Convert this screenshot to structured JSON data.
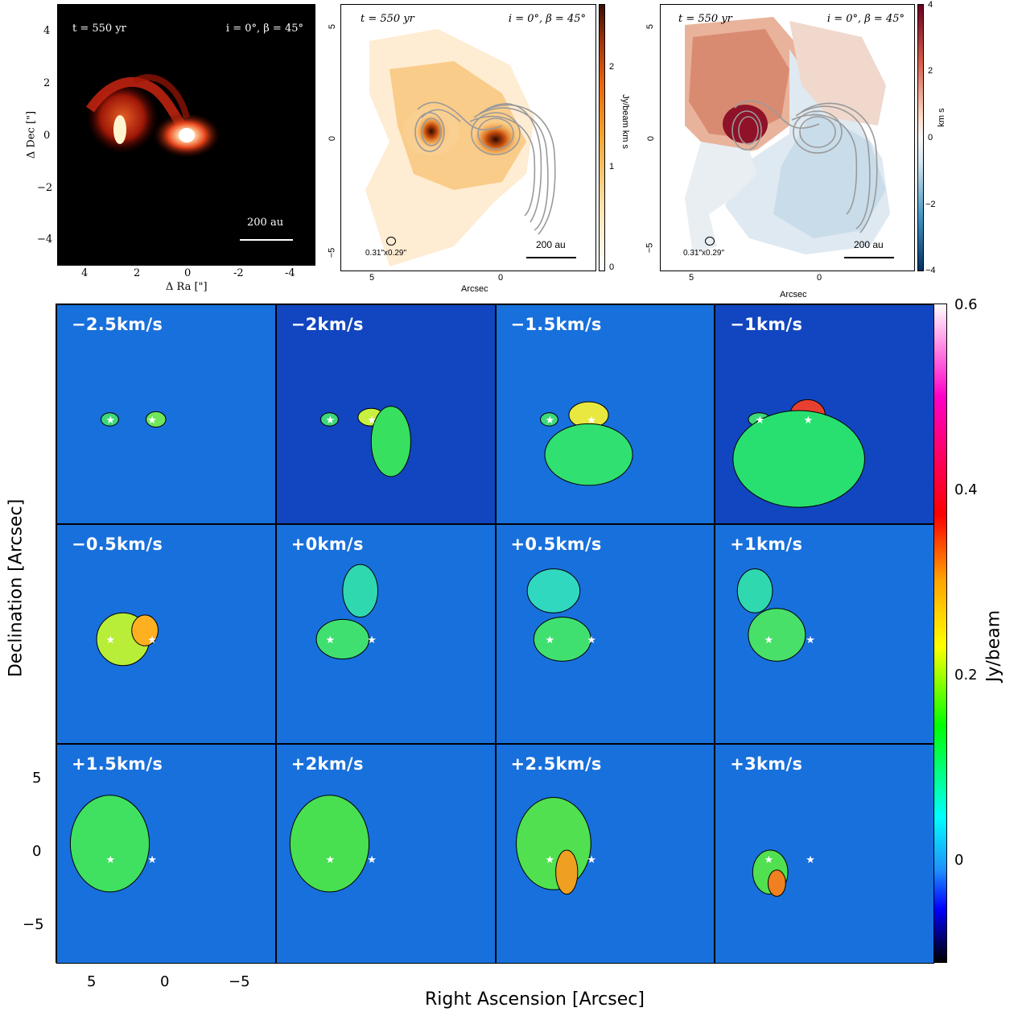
{
  "panel_sim": {
    "time_label": "t = 550 yr",
    "angle_label": "i = 0°, β = 45°",
    "scale_label": "200 au",
    "xlabel": "Δ Ra [\"]",
    "ylabel": "Δ Dec [\"]",
    "xticks": [
      "4",
      "2",
      "0",
      "-2",
      "-4"
    ],
    "yticks": [
      "4",
      "2",
      "0",
      "−2",
      "−4"
    ]
  },
  "panel_mom0": {
    "time_label": "t = 550 yr",
    "angle_label": "i = 0°, β = 45°",
    "beam_label": "0.31\"x0.29\"",
    "scale_label": "200 au",
    "xlabel": "Arcsec",
    "ylabel": "Arcsec",
    "xticks": [
      "5",
      "0"
    ],
    "yticks": [
      "5",
      "0",
      "−5"
    ],
    "cbar_label": "Jy/beam  km s",
    "cbar_ticks": [
      "2",
      "1",
      "0"
    ],
    "cbar_colors": [
      "#ffffff",
      "#fde0a8",
      "#f7a530",
      "#e8650c",
      "#a8360a",
      "#3a0e04"
    ]
  },
  "panel_mom1": {
    "time_label": "t = 550 yr",
    "angle_label": "i = 0°, β = 45°",
    "beam_label": "0.31\"x0.29\"",
    "scale_label": "200 au",
    "xlabel": "Arcsec",
    "ylabel": "Arcsec",
    "xticks": [
      "5",
      "0"
    ],
    "yticks": [
      "5",
      "0",
      "−5"
    ],
    "cbar_label": "km s",
    "cbar_ticks": [
      "4",
      "2",
      "0",
      "−2",
      "−4"
    ],
    "cbar_colors": [
      "#67001f",
      "#d6604d",
      "#fddbc7",
      "#f7f7f7",
      "#d1e5f0",
      "#4393c3",
      "#053061"
    ]
  },
  "channel_maps": {
    "labels": [
      "−2.5km/s",
      "−2km/s",
      "−1.5km/s",
      "−1km/s",
      "−0.5km/s",
      "+0km/s",
      "+0.5km/s",
      "+1km/s",
      "+1.5km/s",
      "+2km/s",
      "+2.5km/s",
      "+3km/s"
    ],
    "xlabel": "Right Ascension [Arcsec]",
    "ylabel": "Declination [Arcsec]",
    "xticks": [
      "5",
      "0",
      "−5"
    ],
    "yticks": [
      "5",
      "0",
      "−5"
    ],
    "cbar_label": "Jy/beam",
    "cbar_ticks": [
      "0.6",
      "0.4",
      "0.2",
      "0"
    ],
    "cbar_colors": [
      "#ffffff",
      "#ff00c8",
      "#ff0000",
      "#ffa500",
      "#ffff00",
      "#00ff00",
      "#00ffff",
      "#1e90ff",
      "#0000ff",
      "#000000"
    ]
  }
}
